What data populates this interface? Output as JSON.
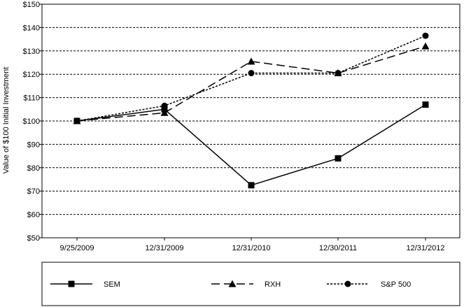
{
  "chart_data": {
    "type": "line",
    "title": "",
    "xlabel": "",
    "ylabel": "Value of $100 Initial Investment",
    "categories": [
      "9/25/2009",
      "12/31/2009",
      "12/31/2010",
      "12/30/2011",
      "12/31/2012"
    ],
    "ylim": [
      50,
      150
    ],
    "ytick_step": 10,
    "ytick_labels": [
      "$50",
      "$60",
      "$70",
      "$80",
      "$90",
      "$100",
      "$110",
      "$120",
      "$130",
      "$140",
      "$150"
    ],
    "grid": "horizontal-dashed",
    "legend_position": "bottom",
    "series": [
      {
        "name": "SEM",
        "values": [
          100,
          105,
          72.5,
          84,
          107
        ],
        "marker": "square",
        "dash": "solid",
        "color": "#000000"
      },
      {
        "name": "RXH",
        "values": [
          100,
          103.5,
          125.5,
          120.5,
          132
        ],
        "marker": "triangle",
        "dash": "dashed",
        "color": "#000000"
      },
      {
        "name": "S&P 500",
        "values": [
          100,
          106.5,
          120.5,
          120.5,
          136.5
        ],
        "marker": "circle",
        "dash": "dotted",
        "color": "#000000"
      }
    ]
  }
}
